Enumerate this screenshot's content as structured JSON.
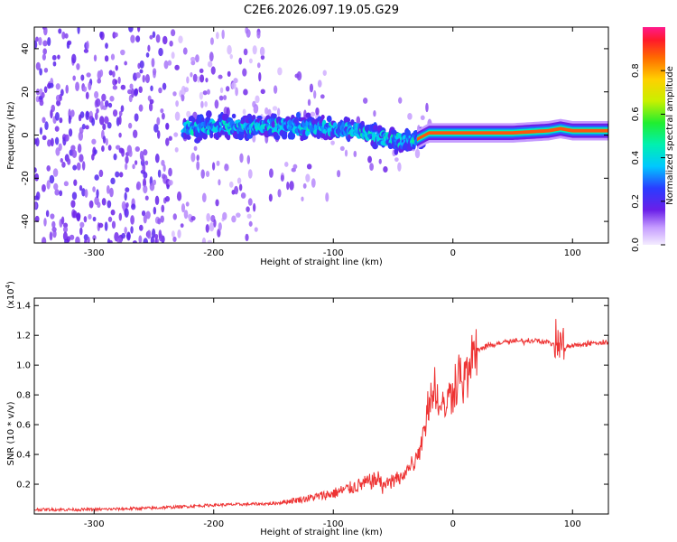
{
  "title": "C2E6.2026.097.19.05.G29",
  "chart_data": [
    {
      "type": "heatmap",
      "name": "spectrogram",
      "xlabel": "Height of straight line (km)",
      "ylabel": "Frequency (Hz)",
      "xlim": [
        -350,
        130
      ],
      "ylim": [
        -50,
        50
      ],
      "x_ticks": [
        -300,
        -200,
        -100,
        0,
        100
      ],
      "y_ticks": [
        -40,
        -20,
        0,
        20,
        40
      ],
      "ridge": {
        "x": [
          -220,
          -200,
          -150,
          -100,
          -80,
          -60,
          -40,
          -30,
          -20,
          0,
          20,
          50,
          80,
          90,
          100,
          130
        ],
        "frequency": [
          3,
          4,
          4,
          3,
          2,
          -1,
          -3,
          -2,
          1,
          1,
          1,
          1,
          2,
          3,
          2,
          2
        ]
      },
      "colorbar": {
        "label": "Normalized spectral amplitude",
        "range": [
          0,
          1
        ],
        "ticks": [
          "0.0",
          "0.2",
          "0.4",
          "0.6",
          "0.8"
        ]
      }
    },
    {
      "type": "line",
      "name": "snr",
      "xlabel": "Height of straight line (km)",
      "ylabel": "SNR (10 * v/v)",
      "scale_label": "(x10",
      "scale_exp": "4",
      "scale_close": ")",
      "xlim": [
        -350,
        130
      ],
      "ylim": [
        0,
        1.45
      ],
      "x_ticks": [
        -300,
        -200,
        -100,
        0,
        100
      ],
      "y_ticks": [
        "0.2",
        "0.4",
        "0.6",
        "0.8",
        "1.0",
        "1.2",
        "1.4"
      ],
      "series": [
        {
          "name": "SNR",
          "color": "#ee3333",
          "x": [
            -350,
            -300,
            -250,
            -200,
            -150,
            -120,
            -100,
            -80,
            -60,
            -50,
            -40,
            -30,
            -25,
            -20,
            -15,
            -10,
            -5,
            0,
            5,
            10,
            15,
            20,
            30,
            40,
            50,
            60,
            70,
            80,
            85,
            90,
            95,
            100,
            110,
            120,
            130
          ],
          "values": [
            0.02,
            0.02,
            0.03,
            0.05,
            0.06,
            0.08,
            0.1,
            0.14,
            0.18,
            0.22,
            0.28,
            0.38,
            0.55,
            0.75,
            0.85,
            0.7,
            0.75,
            0.85,
            0.95,
            0.9,
            1.0,
            1.1,
            1.13,
            1.15,
            1.16,
            1.16,
            1.17,
            1.15,
            1.14,
            1.15,
            1.12,
            1.13,
            1.14,
            1.15,
            1.15
          ]
        }
      ]
    }
  ]
}
